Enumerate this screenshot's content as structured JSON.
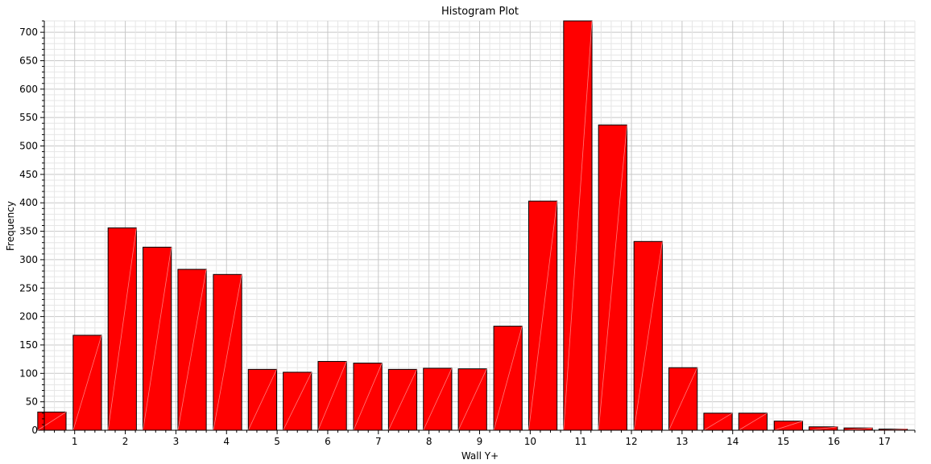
{
  "chart_data": {
    "type": "bar",
    "title": "Histogram Plot",
    "xlabel": "Wall Y+",
    "ylabel": "Frequency",
    "ylim": [
      0,
      720
    ],
    "xlim": [
      0.4,
      17.6
    ],
    "yticks": [
      0,
      50,
      100,
      150,
      200,
      250,
      300,
      350,
      400,
      450,
      500,
      550,
      600,
      650,
      700
    ],
    "xticks": [
      1,
      2,
      3,
      4,
      5,
      6,
      7,
      8,
      9,
      10,
      11,
      12,
      13,
      14,
      15,
      16,
      17
    ],
    "grid": true,
    "bar_color": "#ff0000",
    "bin_centers": [
      0.55,
      1.25,
      1.94,
      2.63,
      3.32,
      4.02,
      4.71,
      5.4,
      6.09,
      6.79,
      7.48,
      8.17,
      8.86,
      9.56,
      10.25,
      10.94,
      11.63,
      12.33,
      13.02,
      13.71,
      14.4,
      15.1,
      15.79,
      16.48,
      17.17
    ],
    "bin_width": 0.56,
    "values": [
      32,
      167,
      356,
      322,
      283,
      274,
      107,
      102,
      121,
      118,
      107,
      109,
      108,
      183,
      403,
      720,
      537,
      332,
      110,
      30,
      30,
      16,
      6,
      4,
      2
    ]
  }
}
